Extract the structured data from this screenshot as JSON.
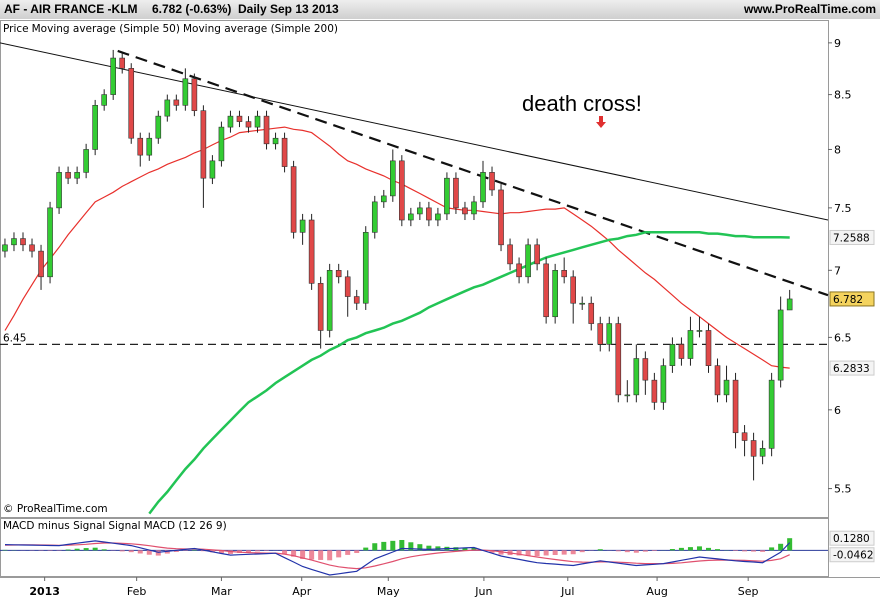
{
  "chart_data": [
    {
      "type": "candlestick",
      "symbol": "AF - AIR FRANCE -KLM",
      "quote": "6.782 (-0.63%)",
      "period": "Daily",
      "date": "Sep 13 2013",
      "source": "www.ProRealTime.com",
      "copyright": "© ProRealTime.com",
      "legend_price": "Price",
      "annotation": "death cross!",
      "log_scale": true,
      "up_color": "#33cc33",
      "down_color": "#e04848",
      "xlim": [
        -0.55,
        91.25
      ],
      "ylim": [
        5.33,
        9.22
      ],
      "yticks": [
        5.5,
        6,
        6.5,
        7,
        7.5,
        8,
        8.5,
        9
      ],
      "xticks": [
        {
          "value": 4.4,
          "label": "2013"
        },
        {
          "value": 14.6,
          "label": "Feb"
        },
        {
          "value": 24.0,
          "label": "Mar"
        },
        {
          "value": 32.9,
          "label": "Apr"
        },
        {
          "value": 42.5,
          "label": "May"
        },
        {
          "value": 53.1,
          "label": "Jun"
        },
        {
          "value": 62.4,
          "label": "Jul"
        },
        {
          "value": 72.3,
          "label": "Aug"
        },
        {
          "value": 82.4,
          "label": "Sep"
        }
      ],
      "open": [
        7.15,
        7.2,
        7.25,
        7.2,
        7.15,
        6.95,
        7.5,
        7.8,
        7.75,
        7.8,
        8.0,
        8.4,
        8.5,
        8.85,
        8.75,
        8.1,
        7.95,
        8.1,
        8.3,
        8.45,
        8.4,
        8.65,
        8.35,
        7.75,
        7.9,
        8.2,
        8.3,
        8.25,
        8.2,
        8.3,
        8.05,
        8.1,
        7.85,
        7.3,
        7.4,
        6.9,
        6.55,
        7.0,
        6.95,
        6.8,
        6.75,
        7.3,
        7.55,
        7.6,
        7.9,
        7.4,
        7.45,
        7.5,
        7.4,
        7.45,
        7.75,
        7.5,
        7.45,
        7.55,
        7.8,
        7.65,
        7.2,
        7.05,
        6.95,
        7.2,
        7.05,
        6.65,
        7.0,
        6.95,
        6.75,
        6.75,
        6.6,
        6.45,
        6.6,
        6.1,
        6.1,
        6.35,
        6.2,
        6.05,
        6.3,
        6.45,
        6.35,
        6.55,
        6.55,
        6.3,
        6.1,
        6.2,
        5.85,
        5.8,
        5.7,
        5.75,
        6.2,
        6.7
      ],
      "high": [
        7.25,
        7.3,
        7.3,
        7.25,
        7.2,
        7.55,
        7.85,
        7.85,
        7.85,
        8.05,
        8.45,
        8.55,
        8.93,
        8.9,
        8.8,
        8.15,
        8.15,
        8.35,
        8.5,
        8.5,
        8.75,
        8.7,
        8.4,
        7.95,
        8.25,
        8.35,
        8.35,
        8.3,
        8.35,
        8.35,
        8.15,
        8.15,
        7.9,
        7.45,
        7.45,
        6.95,
        7.05,
        7.05,
        7.0,
        6.85,
        7.35,
        7.6,
        7.65,
        8.0,
        7.95,
        7.5,
        7.55,
        7.55,
        7.5,
        7.8,
        7.8,
        7.55,
        7.6,
        7.9,
        7.85,
        7.7,
        7.25,
        7.1,
        7.25,
        7.25,
        7.1,
        7.05,
        7.1,
        7.0,
        6.8,
        6.8,
        6.65,
        6.65,
        6.65,
        6.2,
        6.45,
        6.4,
        6.25,
        6.35,
        6.5,
        6.5,
        6.65,
        6.65,
        6.6,
        6.35,
        6.3,
        6.25,
        5.9,
        5.85,
        5.8,
        6.25,
        6.8,
        6.85
      ],
      "low": [
        7.1,
        7.15,
        7.15,
        7.1,
        6.85,
        6.9,
        7.45,
        7.7,
        7.7,
        7.75,
        7.95,
        8.35,
        8.45,
        8.7,
        8.05,
        7.85,
        7.9,
        8.05,
        8.25,
        8.35,
        8.35,
        8.3,
        7.5,
        7.7,
        7.85,
        8.15,
        8.2,
        8.15,
        8.15,
        8.0,
        8.0,
        7.8,
        7.25,
        7.2,
        6.85,
        6.42,
        6.5,
        6.9,
        6.65,
        6.7,
        6.7,
        7.25,
        7.5,
        7.55,
        7.35,
        7.35,
        7.4,
        7.35,
        7.35,
        7.4,
        7.45,
        7.4,
        7.4,
        7.5,
        7.6,
        7.15,
        7.0,
        6.9,
        6.9,
        7.0,
        6.6,
        6.6,
        6.9,
        6.6,
        6.7,
        6.55,
        6.4,
        6.4,
        6.05,
        6.05,
        6.05,
        6.1,
        6.0,
        6.0,
        6.25,
        6.3,
        6.3,
        6.5,
        6.25,
        6.05,
        6.05,
        5.75,
        5.7,
        5.55,
        5.65,
        5.7,
        6.15,
        6.7
      ],
      "close": [
        7.2,
        7.25,
        7.2,
        7.15,
        6.95,
        7.5,
        7.8,
        7.75,
        7.8,
        8.0,
        8.4,
        8.5,
        8.85,
        8.75,
        8.1,
        7.95,
        8.1,
        8.3,
        8.45,
        8.4,
        8.65,
        8.35,
        7.75,
        7.9,
        8.2,
        8.3,
        8.25,
        8.2,
        8.3,
        8.05,
        8.1,
        7.85,
        7.3,
        7.4,
        6.9,
        6.55,
        7.0,
        6.95,
        6.8,
        6.75,
        7.3,
        7.55,
        7.6,
        7.9,
        7.4,
        7.45,
        7.5,
        7.4,
        7.45,
        7.75,
        7.5,
        7.45,
        7.55,
        7.8,
        7.65,
        7.2,
        7.05,
        6.95,
        7.2,
        7.05,
        6.65,
        7.0,
        6.95,
        6.75,
        6.75,
        6.6,
        6.45,
        6.6,
        6.1,
        6.1,
        6.35,
        6.2,
        6.05,
        6.3,
        6.45,
        6.35,
        6.55,
        6.55,
        6.3,
        6.1,
        6.2,
        5.85,
        5.8,
        5.7,
        5.75,
        6.2,
        6.7,
        6.782
      ],
      "series": [
        {
          "name": "Moving average (Simple 50)",
          "color": "#e8302c",
          "values": [
            6.55,
            6.66,
            6.78,
            6.89,
            7.0,
            7.09,
            7.18,
            7.28,
            7.37,
            7.46,
            7.55,
            7.59,
            7.63,
            7.68,
            7.72,
            7.76,
            7.8,
            7.83,
            7.87,
            7.9,
            7.93,
            7.97,
            8.0,
            8.04,
            8.08,
            8.11,
            8.15,
            8.16,
            8.17,
            8.18,
            8.19,
            8.2,
            8.18,
            8.17,
            8.15,
            8.09,
            8.03,
            7.96,
            7.9,
            7.87,
            7.83,
            7.8,
            7.77,
            7.73,
            7.7,
            7.66,
            7.62,
            7.58,
            7.54,
            7.5,
            7.49,
            7.48,
            7.48,
            7.47,
            7.46,
            7.45,
            7.46,
            7.46,
            7.47,
            7.48,
            7.49,
            7.49,
            7.5,
            7.45,
            7.4,
            7.35,
            7.29,
            7.23,
            7.16,
            7.1,
            7.04,
            6.98,
            6.93,
            6.87,
            6.81,
            6.75,
            6.7,
            6.65,
            6.6,
            6.55,
            6.5,
            6.46,
            6.42,
            6.38,
            6.34,
            6.3,
            6.29,
            6.2833
          ]
        },
        {
          "name": "Moving average (Simple 200)",
          "color": "#22c455",
          "values": [
            null,
            null,
            null,
            null,
            null,
            null,
            null,
            null,
            null,
            null,
            null,
            null,
            null,
            null,
            null,
            null,
            5.35,
            5.42,
            5.48,
            5.55,
            5.62,
            5.68,
            5.75,
            5.81,
            5.87,
            5.93,
            5.99,
            6.05,
            6.09,
            6.13,
            6.18,
            6.22,
            6.26,
            6.3,
            6.34,
            6.37,
            6.41,
            6.44,
            6.48,
            6.5,
            6.53,
            6.55,
            6.57,
            6.6,
            6.62,
            6.65,
            6.68,
            6.72,
            6.75,
            6.78,
            6.81,
            6.84,
            6.87,
            6.89,
            6.92,
            6.95,
            6.98,
            7.01,
            7.04,
            7.07,
            7.1,
            7.12,
            7.14,
            7.16,
            7.18,
            7.2,
            7.22,
            7.24,
            7.25,
            7.27,
            7.28,
            7.3,
            7.3,
            7.3,
            7.3,
            7.3,
            7.3,
            7.3,
            7.29,
            7.29,
            7.28,
            7.27,
            7.27,
            7.26,
            7.26,
            7.26,
            7.26,
            7.2588
          ]
        }
      ],
      "hline": 6.45,
      "trendlines": [
        {
          "x": [
            -0.55,
            91.25
          ],
          "y": [
            9.0,
            7.4
          ],
          "dashed": false
        },
        {
          "x": [
            12.5,
            91.25
          ],
          "y": [
            8.92,
            6.81
          ],
          "dashed": true
        }
      ]
    },
    {
      "type": "macd",
      "ylim": [
        -0.27,
        0.33
      ],
      "zero": 0,
      "zero_color": "#2a3a9a",
      "histogram": {
        "name": "MACD minus Signal",
        "color": "#33bb33",
        "neg_color": "#ee8899",
        "last_label": "0.1280",
        "values": [
          0.005,
          0.002,
          -0.001,
          -0.002,
          -0.003,
          -0.004,
          -0.003,
          0.009,
          0.017,
          0.024,
          0.028,
          0.011,
          -0.002,
          -0.011,
          -0.019,
          -0.033,
          -0.046,
          -0.055,
          -0.034,
          -0.017,
          -0.004,
          0.005,
          -0.009,
          -0.021,
          -0.031,
          -0.038,
          -0.027,
          -0.018,
          -0.011,
          -0.005,
          -0.001,
          -0.038,
          -0.067,
          -0.091,
          -0.097,
          -0.101,
          -0.105,
          -0.074,
          -0.048,
          -0.028,
          0.029,
          0.075,
          0.089,
          0.1,
          0.109,
          0.085,
          0.065,
          0.049,
          0.042,
          0.037,
          0.033,
          0.03,
          0.027,
          -0.003,
          -0.026,
          -0.045,
          -0.05,
          -0.054,
          -0.057,
          -0.06,
          -0.054,
          -0.049,
          -0.045,
          -0.041,
          -0.019,
          -0.002,
          0.012,
          -0.001,
          -0.01,
          -0.019,
          -0.025,
          -0.014,
          -0.007,
          0.001,
          0.014,
          0.026,
          0.034,
          0.042,
          0.026,
          0.013,
          0.002,
          -0.006,
          -0.011,
          -0.013,
          -0.016,
          0.031,
          0.069,
          0.128
        ]
      },
      "series": [
        {
          "name": "Signal",
          "color": "#e0506e",
          "values": [
            0.055,
            0.056,
            0.057,
            0.057,
            0.056,
            0.055,
            0.053,
            0.054,
            0.058,
            0.064,
            0.072,
            0.077,
            0.077,
            0.074,
            0.069,
            0.06,
            0.049,
            0.035,
            0.024,
            0.017,
            0.014,
            0.015,
            0.012,
            0.006,
            -0.002,
            -0.012,
            -0.019,
            -0.024,
            -0.027,
            -0.029,
            -0.029,
            -0.039,
            -0.056,
            -0.079,
            -0.103,
            -0.129,
            -0.155,
            -0.173,
            -0.185,
            -0.192,
            -0.184,
            -0.165,
            -0.142,
            -0.117,
            -0.089,
            -0.068,
            -0.052,
            -0.039,
            -0.028,
            -0.019,
            -0.011,
            -0.004,
            0.003,
            0.003,
            -0.004,
            -0.015,
            -0.028,
            -0.041,
            -0.056,
            -0.07,
            -0.084,
            -0.096,
            -0.108,
            -0.119,
            -0.124,
            -0.125,
            -0.122,
            -0.122,
            -0.125,
            -0.129,
            -0.135,
            -0.139,
            -0.14,
            -0.141,
            -0.137,
            -0.131,
            -0.122,
            -0.112,
            -0.106,
            -0.103,
            -0.102,
            -0.104,
            -0.106,
            -0.11,
            -0.114,
            -0.106,
            -0.089,
            -0.0462
          ]
        },
        {
          "name": "MACD (12 26 9)",
          "color": "#2233aa",
          "values": [
            0.06,
            0.058,
            0.056,
            0.055,
            0.053,
            0.051,
            0.05,
            0.063,
            0.075,
            0.088,
            0.1,
            0.088,
            0.075,
            0.063,
            0.05,
            0.027,
            0.003,
            -0.02,
            -0.01,
            0,
            0.01,
            0.02,
            0.003,
            -0.015,
            -0.033,
            -0.05,
            -0.046,
            -0.042,
            -0.038,
            -0.034,
            -0.03,
            -0.077,
            -0.123,
            -0.17,
            -0.2,
            -0.23,
            -0.26,
            -0.247,
            -0.233,
            -0.22,
            -0.155,
            -0.09,
            -0.053,
            -0.017,
            0.02,
            0.017,
            0.013,
            0.01,
            0.014,
            0.018,
            0.022,
            0.026,
            0.03,
            0,
            -0.03,
            -0.06,
            -0.078,
            -0.095,
            -0.113,
            -0.13,
            -0.138,
            -0.145,
            -0.153,
            -0.16,
            -0.143,
            -0.127,
            -0.11,
            -0.123,
            -0.135,
            -0.148,
            -0.16,
            -0.153,
            -0.147,
            -0.14,
            -0.123,
            -0.105,
            -0.088,
            -0.07,
            -0.08,
            -0.09,
            -0.1,
            -0.11,
            -0.117,
            -0.123,
            -0.13,
            -0.075,
            -0.02,
            0.0818
          ]
        }
      ]
    }
  ]
}
